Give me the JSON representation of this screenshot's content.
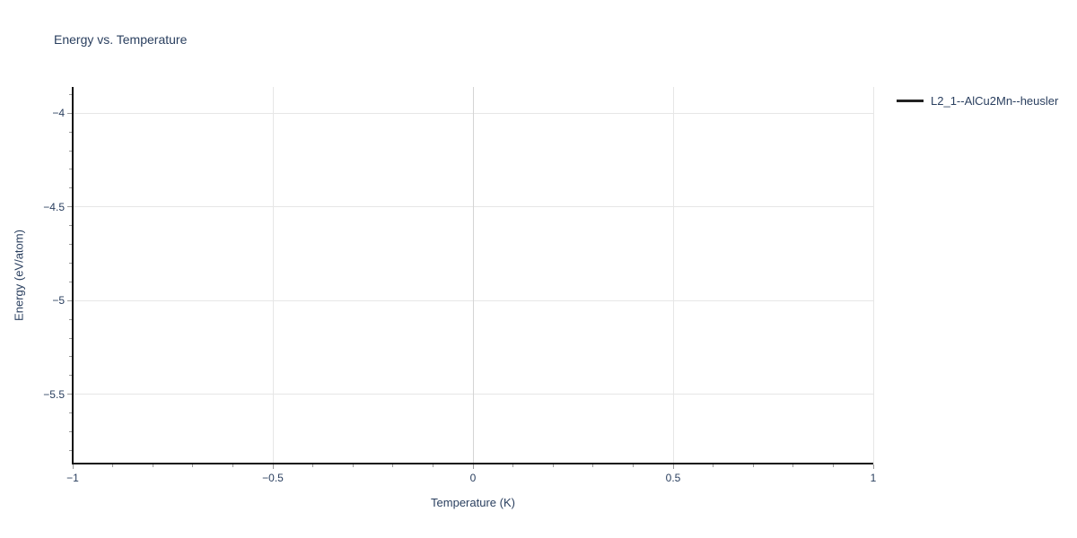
{
  "chart_data": {
    "type": "line",
    "title": "Energy vs. Temperature",
    "xlabel": "Temperature (K)",
    "ylabel": "Energy (eV/atom)",
    "xlim": [
      -1,
      1
    ],
    "ylim": [
      -5.87,
      -3.86
    ],
    "x_ticks": {
      "values": [
        -1,
        -0.5,
        0,
        0.5,
        1
      ],
      "labels": [
        "−1",
        "−0.5",
        "0",
        "0.5",
        "1"
      ]
    },
    "y_ticks": {
      "values": [
        -4,
        -4.5,
        -5,
        -5.5
      ],
      "labels": [
        "−4",
        "−4.5",
        "−5",
        "−5.5"
      ]
    },
    "x_minor_step": 0.1,
    "y_minor_step": 0.1,
    "grid": true,
    "legend": {
      "position": "top-right",
      "entries": [
        {
          "label": "L2_1--AlCu2Mn--heusler",
          "color": "#222222",
          "marker": "line"
        }
      ]
    },
    "series": [
      {
        "name": "L2_1--AlCu2Mn--heusler",
        "color": "#222222",
        "x": [],
        "y": []
      }
    ]
  },
  "colors": {
    "text": "#2a3f5f",
    "grid": "#e6e6e6",
    "zeroline": "#d4d4d4",
    "axis_line": "#111111",
    "tick": "#999999",
    "background": "#ffffff"
  }
}
